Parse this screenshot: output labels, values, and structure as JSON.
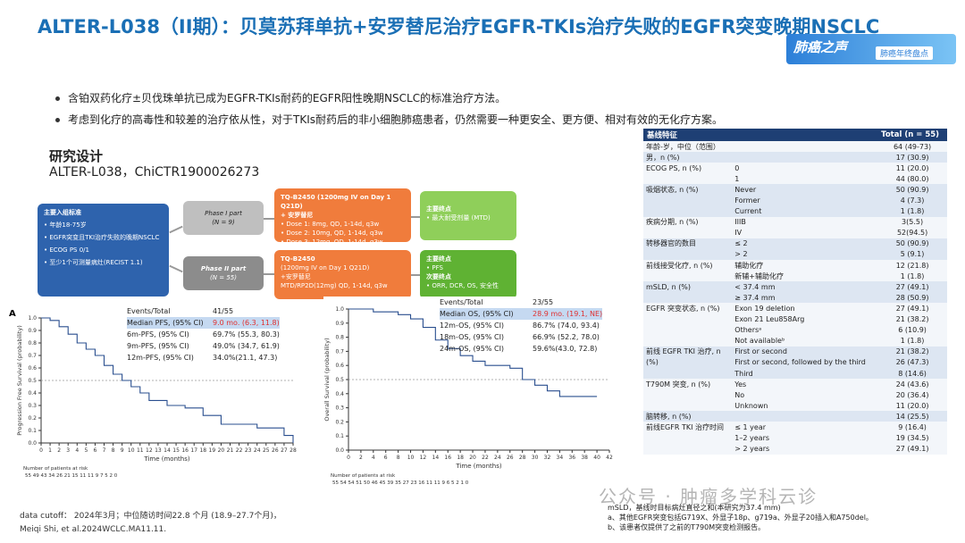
{
  "title": "ALTER-L038（II期）：贝莫苏拜单抗+安罗替尼治疗EGFR-TKIs治疗失败的EGFR突变晚期NSCLC",
  "brand": {
    "logo": "肺癌之声",
    "tag": "肺癌年终盘点"
  },
  "bullets": [
    "含铂双药化疗±贝伐珠单抗已成为EGFR-TKIs耐药的EGFR阳性晚期NSCLC的标准治疗方法。",
    "考虑到化疗的高毒性和较差的治疗依从性，对于TKIs耐药后的非小细胞肺癌患者，仍然需要一种更安全、更方便、相对有效的无化疗方案。"
  ],
  "design": {
    "heading": "研究设计",
    "trial": "ALTER-L038，ChiCTR1900026273",
    "inclusion": {
      "head": "主要入组标准",
      "items": [
        "年龄18-75岁",
        "EGFR突变且TKI治疗失败的晚期NSCLC",
        "ECOG PS 0/1",
        "至少1个可测量病灶(RECIST 1.1)"
      ]
    },
    "phase1": {
      "name": "Phase I part",
      "n": "(N = 9)"
    },
    "phase2": {
      "name": "Phase II part",
      "n": "(N = 55)"
    },
    "treat1": {
      "l1": "TQ-B2450 (1200mg IV on Day 1 Q21D)",
      "l2": "+ 安罗替尼",
      "d1": "Dose 1:  8mg, QD, 1-14d, q3w",
      "d2": "Dose 2:  10mg, QD, 1-14d, q3w",
      "d3": "Dose 3:  12mg, QD, 1-14d, q3w"
    },
    "treat2": {
      "l1": "TQ-B2450",
      "l2": "(1200mg IV on Day 1 Q21D)",
      "l3": "+安罗替尼",
      "l4": "MTD/RP2D(12mg) QD, 1-14d, q3w"
    },
    "end1": {
      "head": "主要终点",
      "items": "• 最大耐受剂量 (MTD)"
    },
    "end2": {
      "head": "主要终点",
      "i1": "• PFS",
      "head2": "次要终点",
      "i2": "• ORR, DCR, OS, 安全性"
    }
  },
  "pfs_plot": {
    "panel": "A",
    "ylabel": "Progression Free Survival (probability)",
    "xlabel": "Time (months)",
    "yticks": [
      "1.0",
      "0.9",
      "0.8",
      "0.7",
      "0.6",
      "0.5",
      "0.4",
      "0.3",
      "0.2",
      "0.1",
      "0.0"
    ],
    "xticks": [
      "0",
      "1",
      "2",
      "3",
      "4",
      "5",
      "6",
      "7",
      "8",
      "9",
      "10",
      "11",
      "12",
      "13",
      "14",
      "15",
      "16",
      "17",
      "18",
      "19",
      "20",
      "21",
      "22",
      "23",
      "24",
      "25",
      "26",
      "27",
      "28"
    ],
    "risk_label": "Number of patients at risk",
    "risk": "55  49  43  34  26  21  15  11  11  9  7  5  2  0",
    "stats": [
      {
        "l": "Events/Total",
        "v": "41/55"
      },
      {
        "l": "Median PFS, (95% CI)",
        "v": "9.0 mo. (6.3, 11.8)",
        "hl": true
      },
      {
        "l": "6m-PFS, (95% CI)",
        "v": "69.7% (55.3, 80.3)"
      },
      {
        "l": "9m-PFS, (95% CI)",
        "v": "49.0% (34.7, 61.9)"
      },
      {
        "l": "12m-PFS, (95% CI)",
        "v": "34.0%(21.1, 47.3)"
      }
    ]
  },
  "os_plot": {
    "ylabel": "Overall Survival (probability)",
    "xlabel": "Time (months)",
    "yticks": [
      "1.0",
      "0.9",
      "0.8",
      "0.7",
      "0.6",
      "0.5",
      "0.4",
      "0.3",
      "0.2",
      "0.1",
      "0.0"
    ],
    "xticks": [
      "0",
      "2",
      "4",
      "6",
      "8",
      "10",
      "12",
      "14",
      "16",
      "18",
      "20",
      "22",
      "24",
      "26",
      "28",
      "30",
      "32",
      "34",
      "36",
      "38",
      "40",
      "42"
    ],
    "risk_label": "Number of patients at risk",
    "risk": "55  54  54  51  50  46  45  39  35  27  23  16  11  11  9  6  5  2  1  0",
    "stats": [
      {
        "l": "Events/Total",
        "v": "23/55"
      },
      {
        "l": "Median OS, (95% CI)",
        "v": "28.9 mo. (19.1, NE)",
        "hl": true
      },
      {
        "l": "12m-OS, (95% CI)",
        "v": "86.7% (74.0, 93.4)"
      },
      {
        "l": "18m-OS, (95% CI)",
        "v": "66.9% (52.2, 78.0)"
      },
      {
        "l": "24m-OS, (95% CI)",
        "v": "59.6%(43.0, 72.8)"
      }
    ]
  },
  "footer": {
    "cutoff": "data cutoff： 2024年3月；中位随访时间22.8 个月 (18.9–27.7个月)，",
    "ref": "Meiqi Shi, et al.2024WCLC.MA11.11."
  },
  "table": {
    "h1": "基线特征",
    "h2": "Total (n = 55)",
    "rows": [
      {
        "a": "年龄-岁，中位（范围）",
        "b": "",
        "c": "64 (49-73)",
        "s": "w"
      },
      {
        "a": "男，n (%)",
        "b": "",
        "c": "17 (30.9)",
        "s": "g"
      },
      {
        "a": "ECOG PS, n (%)",
        "b": "0",
        "c": "11 (20.0)",
        "s": "w"
      },
      {
        "a": "",
        "b": "1",
        "c": "44 (80.0)",
        "s": "w"
      },
      {
        "a": "吸烟状态, n (%)",
        "b": "Never",
        "c": "50 (90.9)",
        "s": "g"
      },
      {
        "a": "",
        "b": "Former",
        "c": "4 (7.3)",
        "s": "g"
      },
      {
        "a": "",
        "b": "Current",
        "c": "1 (1.8)",
        "s": "g"
      },
      {
        "a": "疾病分期, n (%)",
        "b": "IIIB",
        "c": "3(5.5)",
        "s": "w"
      },
      {
        "a": "",
        "b": "IV",
        "c": "52(94.5)",
        "s": "w"
      },
      {
        "a": "转移器官的数目",
        "b": "≤ 2",
        "c": "50 (90.9)",
        "s": "g"
      },
      {
        "a": "",
        "b": "> 2",
        "c": "5 (9.1)",
        "s": "g"
      },
      {
        "a": "前线接受化疗, n (%)",
        "b": "辅助化疗",
        "c": "12 (21.8)",
        "s": "w"
      },
      {
        "a": "",
        "b": "新辅+辅助化疗",
        "c": "1 (1.8)",
        "s": "w"
      },
      {
        "a": "mSLD, n (%)",
        "b": "< 37.4 mm",
        "c": "27 (49.1)",
        "s": "g"
      },
      {
        "a": "",
        "b": "≥ 37.4 mm",
        "c": "28 (50.9)",
        "s": "g"
      },
      {
        "a": "EGFR 突变状态, n (%)",
        "b": "Exon 19 deletion",
        "c": "27 (49.1)",
        "s": "w"
      },
      {
        "a": "",
        "b": "Exon 21 Leu858Arg",
        "c": "21 (38.2)",
        "s": "w"
      },
      {
        "a": "",
        "b": "Othersᵃ",
        "c": "6 (10.9)",
        "s": "w"
      },
      {
        "a": "",
        "b": "Not availableᵇ",
        "c": "1 (1.8)",
        "s": "w"
      },
      {
        "a": "前线 EGFR TKI 治疗, n",
        "b": "First or second",
        "c": "21 (38.2)",
        "s": "g"
      },
      {
        "a": "(%)",
        "b": "First or second, followed by the third",
        "c": "26 (47.3)",
        "s": "g"
      },
      {
        "a": "",
        "b": "Third",
        "c": "8 (14.6)",
        "s": "g"
      },
      {
        "a": "T790M 突变, n (%)",
        "b": "Yes",
        "c": "24 (43.6)",
        "s": "w"
      },
      {
        "a": "",
        "b": "No",
        "c": "20 (36.4)",
        "s": "w"
      },
      {
        "a": "",
        "b": "Unknown",
        "c": "11 (20.0)",
        "s": "w"
      },
      {
        "a": "脑转移, n (%)",
        "b": "",
        "c": "14 (25.5)",
        "s": "g"
      },
      {
        "a": "前线EGFR TKI 治疗时间",
        "b": "≤ 1 year",
        "c": "9 (16.4)",
        "s": "w"
      },
      {
        "a": "",
        "b": "1–2 years",
        "c": "19 (34.5)",
        "s": "w"
      },
      {
        "a": "",
        "b": "> 2 years",
        "c": "27 (49.1)",
        "s": "w"
      }
    ]
  },
  "notes": {
    "n1": "mSLD，基线时目标病灶直径之和(本研究为37.4 mm)",
    "n2": "a、其他EGFR突变包括G719X、外显子18p、g719a、外显子20插入和A750del。",
    "n3": "b、该患者仅提供了之前的T790M突变检测报告。"
  },
  "watermark": "公众号 · 肿瘤多学科云诊",
  "chart_data": [
    {
      "type": "line",
      "title": "",
      "xlabel": "Time (months)",
      "ylabel": "Progression Free Survival (probability)",
      "xlim": [
        0,
        28
      ],
      "ylim": [
        0,
        1
      ],
      "series": [
        {
          "x": [
            0,
            1,
            2,
            3,
            4,
            5,
            6,
            7,
            8,
            9,
            10,
            11,
            12,
            14,
            16,
            18,
            20,
            24,
            27,
            28
          ],
          "y": [
            1.0,
            0.98,
            0.93,
            0.87,
            0.8,
            0.75,
            0.7,
            0.62,
            0.55,
            0.5,
            0.45,
            0.4,
            0.34,
            0.3,
            0.28,
            0.22,
            0.15,
            0.12,
            0.06,
            0.0
          ]
        }
      ]
    },
    {
      "type": "line",
      "title": "",
      "xlabel": "Time (months)",
      "ylabel": "Overall Survival (probability)",
      "xlim": [
        0,
        42
      ],
      "ylim": [
        0,
        1
      ],
      "series": [
        {
          "x": [
            0,
            4,
            8,
            10,
            12,
            14,
            16,
            18,
            20,
            22,
            24,
            26,
            28,
            30,
            32,
            34,
            38,
            40
          ],
          "y": [
            1.0,
            0.98,
            0.96,
            0.93,
            0.87,
            0.78,
            0.72,
            0.67,
            0.63,
            0.6,
            0.6,
            0.58,
            0.5,
            0.46,
            0.42,
            0.38,
            0.38,
            0.38
          ]
        }
      ]
    }
  ]
}
